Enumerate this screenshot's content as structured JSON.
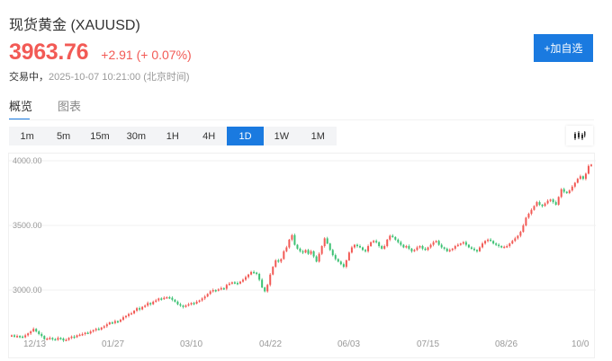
{
  "header": {
    "title": "现货黄金 (XAUUSD)",
    "price": "3963.76",
    "change": "+2.91 (+ 0.07%)",
    "status": "交易中，",
    "timestamp": "2025-10-07 10:21:00 (北京时间)",
    "add_watchlist_label": "+加自选"
  },
  "tabs": [
    {
      "label": "概览",
      "active": true
    },
    {
      "label": "图表",
      "active": false
    }
  ],
  "periods": [
    {
      "label": "1m",
      "active": false
    },
    {
      "label": "5m",
      "active": false
    },
    {
      "label": "15m",
      "active": false
    },
    {
      "label": "30m",
      "active": false
    },
    {
      "label": "1H",
      "active": false
    },
    {
      "label": "4H",
      "active": false
    },
    {
      "label": "1D",
      "active": true
    },
    {
      "label": "1W",
      "active": false
    },
    {
      "label": "1M",
      "active": false
    }
  ],
  "chart_type_icon": "candlestick-icon",
  "colors": {
    "accent": "#1a7ae0",
    "up": "#f25a55",
    "down": "#3cc173",
    "grid": "#f0f0f0"
  },
  "chart_data": {
    "type": "candlestick",
    "title": "XAUUSD 1D",
    "xlabel": "",
    "ylabel": "",
    "ylim": [
      2550,
      4030
    ],
    "y_ticks": [
      "4000.00",
      "3500.00",
      "3000.00"
    ],
    "x_ticks": [
      "12/13",
      "01/27",
      "03/10",
      "04/22",
      "06/03",
      "07/15",
      "08/26",
      "10/0"
    ],
    "grid": true,
    "legend": null,
    "up_color": "#f25a55",
    "down_color": "#3cc173",
    "closes": [
      2650,
      2640,
      2645,
      2640,
      2635,
      2650,
      2665,
      2680,
      2700,
      2680,
      2660,
      2645,
      2620,
      2625,
      2630,
      2620,
      2615,
      2630,
      2625,
      2610,
      2615,
      2630,
      2640,
      2635,
      2650,
      2655,
      2660,
      2670,
      2665,
      2680,
      2690,
      2700,
      2695,
      2710,
      2720,
      2735,
      2750,
      2745,
      2760,
      2755,
      2770,
      2790,
      2800,
      2815,
      2820,
      2840,
      2860,
      2850,
      2870,
      2880,
      2900,
      2890,
      2910,
      2920,
      2935,
      2930,
      2940,
      2945,
      2940,
      2925,
      2910,
      2890,
      2880,
      2870,
      2880,
      2890,
      2900,
      2895,
      2910,
      2920,
      2935,
      2950,
      2970,
      2990,
      3000,
      2995,
      3005,
      3015,
      3010,
      3040,
      3050,
      3060,
      3055,
      3050,
      3065,
      3080,
      3100,
      3120,
      3140,
      3135,
      3125,
      3080,
      3020,
      2990,
      3040,
      3120,
      3180,
      3230,
      3220,
      3240,
      3300,
      3330,
      3390,
      3425,
      3350,
      3320,
      3300,
      3290,
      3310,
      3280,
      3300,
      3260,
      3220,
      3280,
      3340,
      3400,
      3360,
      3310,
      3270,
      3240,
      3220,
      3200,
      3180,
      3230,
      3290,
      3330,
      3350,
      3340,
      3330,
      3310,
      3300,
      3340,
      3370,
      3380,
      3370,
      3340,
      3320,
      3340,
      3390,
      3420,
      3410,
      3390,
      3370,
      3350,
      3330,
      3340,
      3320,
      3300,
      3310,
      3330,
      3340,
      3320,
      3310,
      3330,
      3350,
      3370,
      3380,
      3350,
      3330,
      3320,
      3300,
      3310,
      3320,
      3340,
      3350,
      3360,
      3370,
      3350,
      3330,
      3320,
      3310,
      3300,
      3330,
      3360,
      3380,
      3390,
      3380,
      3360,
      3350,
      3340,
      3330,
      3335,
      3340,
      3360,
      3380,
      3400,
      3420,
      3450,
      3500,
      3560,
      3590,
      3620,
      3650,
      3680,
      3660,
      3650,
      3670,
      3690,
      3700,
      3680,
      3660,
      3720,
      3780,
      3760,
      3750,
      3770,
      3800,
      3830,
      3860,
      3880,
      3860,
      3900,
      3960,
      3970
    ]
  }
}
